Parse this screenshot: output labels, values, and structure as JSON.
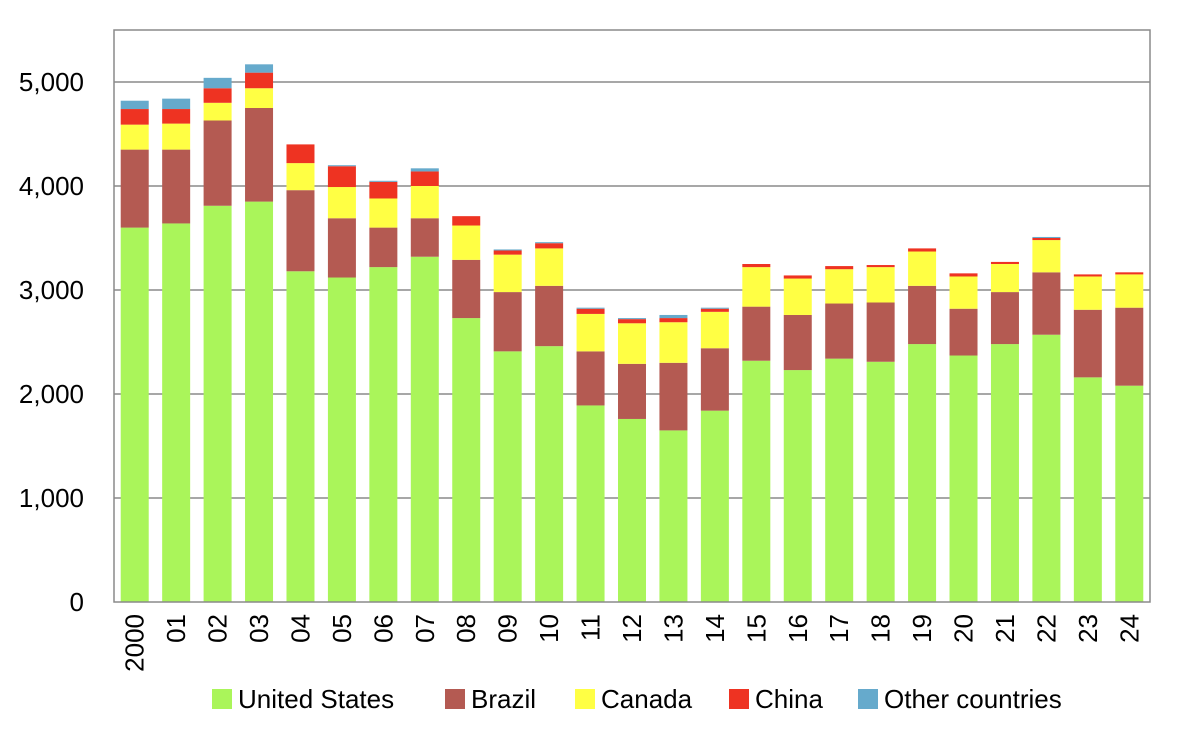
{
  "chart_data": {
    "type": "bar",
    "stacked": true,
    "title": "",
    "xlabel": "",
    "ylabel": "",
    "ylim": [
      0,
      5500
    ],
    "yticks": [
      0,
      1000,
      2000,
      3000,
      4000,
      5000
    ],
    "ytick_labels": [
      "0",
      "1,000",
      "2,000",
      "3,000",
      "4,000",
      "5,000"
    ],
    "grid": true,
    "legend_position": "bottom",
    "categories": [
      "2000",
      "01",
      "02",
      "03",
      "04",
      "05",
      "06",
      "07",
      "08",
      "09",
      "10",
      "11",
      "12",
      "13",
      "14",
      "15",
      "16",
      "17",
      "18",
      "19",
      "20",
      "21",
      "22",
      "23",
      "24"
    ],
    "series": [
      {
        "name": "United States",
        "color": "#aaf55a",
        "values": [
          3600,
          3640,
          3810,
          3850,
          3180,
          3120,
          3220,
          3320,
          2730,
          2410,
          2460,
          1890,
          1760,
          1650,
          1840,
          2320,
          2230,
          2340,
          2310,
          2480,
          2370,
          2480,
          2570,
          2160,
          2080
        ]
      },
      {
        "name": "Brazil",
        "color": "#b45a52",
        "values": [
          750,
          710,
          820,
          900,
          780,
          570,
          380,
          370,
          560,
          570,
          580,
          520,
          530,
          650,
          600,
          520,
          530,
          530,
          570,
          560,
          450,
          500,
          600,
          650,
          750
        ]
      },
      {
        "name": "Canada",
        "color": "#ffff44",
        "values": [
          240,
          250,
          170,
          190,
          260,
          300,
          280,
          310,
          330,
          360,
          360,
          360,
          390,
          390,
          350,
          380,
          350,
          330,
          340,
          330,
          310,
          270,
          310,
          320,
          320
        ]
      },
      {
        "name": "China",
        "color": "#ee3322",
        "values": [
          150,
          140,
          140,
          150,
          180,
          200,
          160,
          140,
          90,
          40,
          50,
          50,
          40,
          40,
          30,
          30,
          30,
          30,
          20,
          30,
          30,
          20,
          20,
          20,
          20
        ]
      },
      {
        "name": "Other countries",
        "color": "#66aacc",
        "values": [
          80,
          100,
          100,
          80,
          0,
          10,
          10,
          30,
          0,
          10,
          10,
          10,
          10,
          30,
          10,
          0,
          0,
          0,
          0,
          0,
          0,
          0,
          10,
          0,
          0
        ]
      }
    ]
  }
}
